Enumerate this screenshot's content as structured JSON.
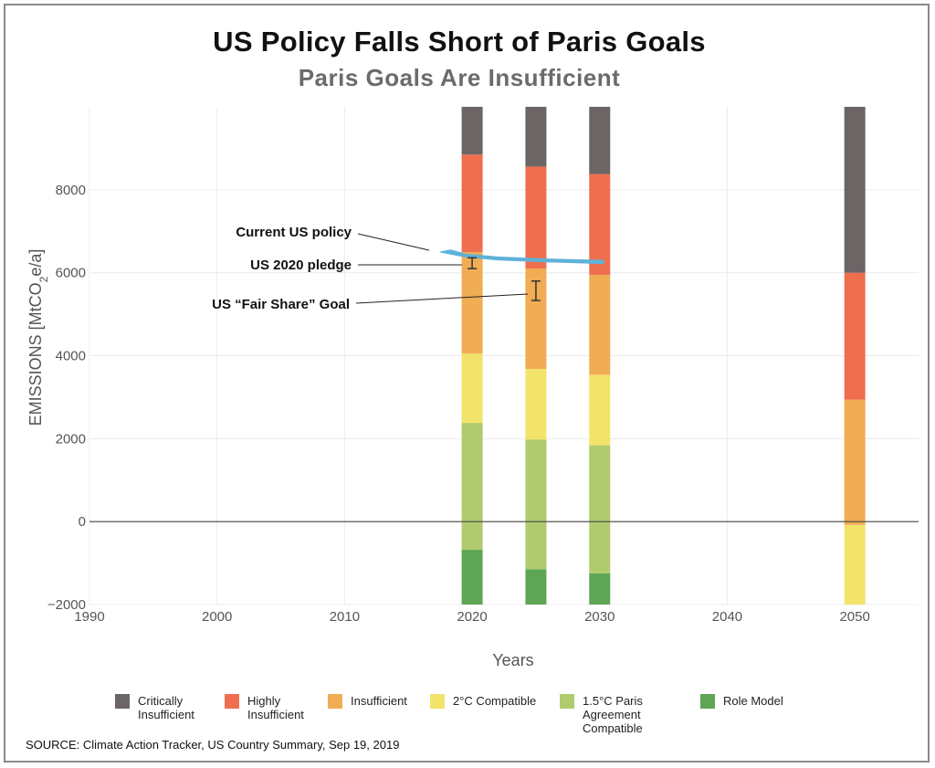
{
  "title": "US Policy Falls Short of Paris Goals",
  "subtitle": "Paris Goals Are Insufficient",
  "source": "SOURCE: Climate Action Tracker, US Country Summary, Sep 19, 2019",
  "chart_data": {
    "type": "bar",
    "xlabel": "Years",
    "ylabel_main": "EMISSIONS [MtCO",
    "ylabel_sub": "2",
    "ylabel_end": "e/a]",
    "xlim": [
      1990,
      2055
    ],
    "ylim": [
      -2000,
      10000
    ],
    "xticks": [
      1990,
      2000,
      2010,
      2020,
      2030,
      2040,
      2050
    ],
    "yticks": [
      -2000,
      0,
      2000,
      4000,
      6000,
      8000
    ],
    "ytick_labels": [
      "−2000",
      "0",
      "2000",
      "4000",
      "6000",
      "8000"
    ],
    "grid": true,
    "legend_position": "bottom",
    "categories": [
      2020,
      2025,
      2030,
      2050
    ],
    "series": [
      {
        "name": "Role Model",
        "color": "#5ea556",
        "ranges": [
          [
            -2000,
            -680
          ],
          [
            -2000,
            -1150
          ],
          [
            -2000,
            -1250
          ],
          null
        ]
      },
      {
        "name": "1.5°C Paris Agreement Compatible",
        "color": "#b0cb6e",
        "ranges": [
          [
            -680,
            2380
          ],
          [
            -1150,
            1980
          ],
          [
            -1250,
            1840
          ],
          null
        ]
      },
      {
        "name": "2°C Compatible",
        "color": "#f2e36b",
        "ranges": [
          [
            2380,
            4050
          ],
          [
            1980,
            3680
          ],
          [
            1840,
            3540
          ],
          [
            -2000,
            -80
          ]
        ]
      },
      {
        "name": "Insufficient",
        "color": "#f0ad54",
        "ranges": [
          [
            4050,
            6500
          ],
          [
            3680,
            6100
          ],
          [
            3540,
            5950
          ],
          [
            -80,
            2940
          ]
        ]
      },
      {
        "name": "Highly Insufficient",
        "color": "#ee6e4e",
        "ranges": [
          [
            6500,
            8850
          ],
          [
            6100,
            8560
          ],
          [
            5950,
            8380
          ],
          [
            2940,
            6000
          ]
        ]
      },
      {
        "name": "Critically Insufficient",
        "color": "#6b6566",
        "ranges": [
          [
            8850,
            10000
          ],
          [
            8560,
            10000
          ],
          [
            8380,
            10000
          ],
          [
            6000,
            10000
          ]
        ]
      }
    ],
    "current_policy": {
      "label": "Current US policy",
      "color": "#5fb2d9",
      "upper": [
        [
          2017.5,
          6500
        ],
        [
          2018.3,
          6550
        ],
        [
          2019.5,
          6450
        ],
        [
          2022,
          6380
        ],
        [
          2026,
          6330
        ],
        [
          2030.3,
          6300
        ]
      ],
      "lower": [
        [
          2030.3,
          6220
        ],
        [
          2026,
          6260
        ],
        [
          2022,
          6310
        ],
        [
          2019.5,
          6380
        ],
        [
          2018.3,
          6450
        ],
        [
          2017.5,
          6500
        ]
      ]
    },
    "pledge_2020": {
      "label": "US 2020 pledge",
      "x": 2020,
      "low": 6100,
      "high": 6360
    },
    "fair_share": {
      "label": "US “Fair Share” Goal",
      "x": 2025,
      "low": 5330,
      "high": 5800
    },
    "legend": [
      {
        "label": "Critically\nInsufficient",
        "color": "#6b6566"
      },
      {
        "label": "Highly\nInsufficient",
        "color": "#ee6e4e"
      },
      {
        "label": "Insufficient",
        "color": "#f0ad54"
      },
      {
        "label": "2°C Compatible",
        "color": "#f2e36b"
      },
      {
        "label": "1.5°C Paris Agreement\nCompatible",
        "color": "#b0cb6e"
      },
      {
        "label": "Role Model",
        "color": "#5ea556"
      }
    ]
  }
}
